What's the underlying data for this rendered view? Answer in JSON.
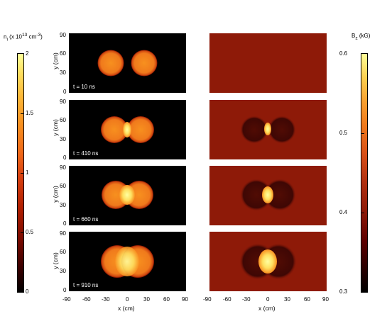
{
  "colorbar_left": {
    "label_html": "n<sub>i</sub> (x 10<sup>13</sup> cm<sup>-3</sup>)",
    "ticks": [
      "2",
      "1.5",
      "1",
      "0.5",
      "0"
    ]
  },
  "colorbar_right": {
    "label_html": "B<sub>z</sub> (kG)",
    "ticks": [
      "0.6",
      "0.5",
      "0.4",
      "0.3"
    ]
  },
  "axes": {
    "ylabel": "y (cm)",
    "xlabel": "x (cm)",
    "y_ticks": [
      "90",
      "60",
      "30",
      "0"
    ],
    "x_ticks": [
      "-90",
      "-60",
      "-30",
      "0",
      "30",
      "60",
      "90"
    ]
  },
  "panels": [
    {
      "time": "t = 10 ns"
    },
    {
      "time": "t = 410 ns"
    },
    {
      "time": "t = 660 ns"
    },
    {
      "time": "t = 910 ns"
    }
  ],
  "colors": {
    "background_left": "#000000",
    "background_right": "#8e1a08",
    "plasma": "#f07a1c",
    "core": "#fff07a"
  }
}
